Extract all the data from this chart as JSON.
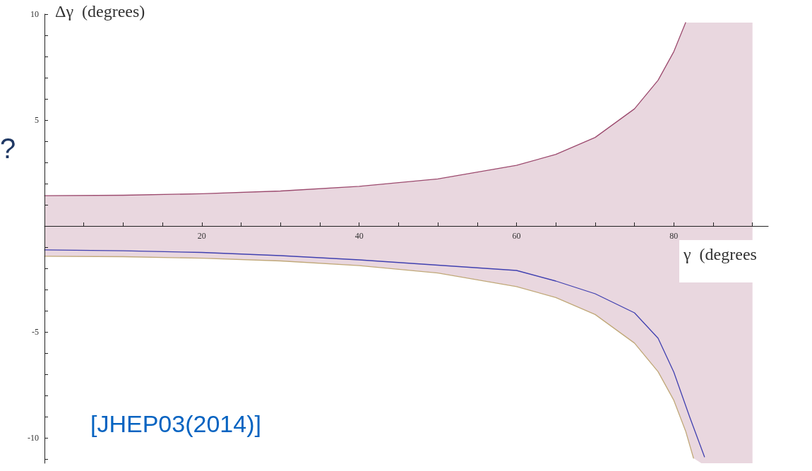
{
  "chart_data": {
    "type": "line",
    "ylabel": "Δγ  (degrees)",
    "xlabel": "γ  (degrees",
    "annotations": [
      "?",
      "[JHEP03(2014)]"
    ],
    "xlim": [
      0,
      92
    ],
    "ylim": [
      -11.2,
      10
    ],
    "xticks": [
      {
        "value": 5,
        "label": null
      },
      {
        "value": 10,
        "label": null
      },
      {
        "value": 15,
        "label": null
      },
      20,
      {
        "value": 25,
        "label": null
      },
      {
        "value": 30,
        "label": null
      },
      {
        "value": 35,
        "label": null
      },
      40,
      {
        "value": 45,
        "label": null
      },
      {
        "value": 50,
        "label": null
      },
      {
        "value": 55,
        "label": null
      },
      60,
      {
        "value": 65,
        "label": null
      },
      {
        "value": 70,
        "label": null
      },
      {
        "value": 75,
        "label": null
      },
      80,
      {
        "value": 85,
        "label": null
      },
      {
        "value": 90,
        "label": null
      }
    ],
    "yticks": [
      {
        "value": -11,
        "label": null
      },
      -10,
      {
        "value": -9,
        "label": null
      },
      {
        "value": -8,
        "label": null
      },
      {
        "value": -7,
        "label": null
      },
      {
        "value": -6,
        "label": null
      },
      -5,
      {
        "value": -4,
        "label": null
      },
      {
        "value": -3,
        "label": null
      },
      {
        "value": -2,
        "label": null
      },
      {
        "value": -1,
        "label": null
      },
      {
        "value": 1,
        "label": null
      },
      {
        "value": 2,
        "label": null
      },
      {
        "value": 3,
        "label": null
      },
      {
        "value": 4,
        "label": null
      },
      5,
      {
        "value": 6,
        "label": null
      },
      {
        "value": 7,
        "label": null
      },
      {
        "value": 8,
        "label": null
      },
      {
        "value": 9,
        "label": null
      },
      10
    ],
    "grid": false,
    "marker": "none",
    "line_style": "solid",
    "series": [
      {
        "color": "#9c4a6e",
        "x": [
          0,
          10,
          20,
          30,
          40,
          50,
          60,
          65,
          70,
          75,
          78,
          80,
          81.5,
          82.5,
          83.5,
          85,
          90
        ],
        "values": [
          1.43,
          1.45,
          1.52,
          1.65,
          1.87,
          2.22,
          2.86,
          3.38,
          4.18,
          5.53,
          6.88,
          8.23,
          9.6,
          null,
          null,
          null,
          null
        ],
        "lower": [
          -1.43,
          -1.45,
          -1.52,
          -1.65,
          -1.87,
          -2.22,
          -2.86,
          -3.38,
          -4.18,
          -5.53,
          -6.88,
          -8.23,
          -9.68,
          -10.96,
          -11.2,
          -11.2,
          -11.2
        ],
        "upper": [
          1.43,
          1.45,
          1.52,
          1.65,
          1.87,
          2.22,
          2.86,
          3.38,
          4.18,
          5.53,
          6.88,
          8.23,
          9.6,
          9.6,
          9.6,
          9.6,
          9.6
        ]
      },
      {
        "color": "#4040b0",
        "x": [
          0,
          10,
          20,
          30,
          40,
          50,
          60,
          65,
          70,
          75,
          78,
          80,
          82,
          83.9
        ],
        "values": [
          -1.13,
          -1.17,
          -1.25,
          -1.4,
          -1.6,
          -1.85,
          -2.1,
          -2.6,
          -3.2,
          -4.1,
          -5.3,
          -6.9,
          -9.0,
          -10.9
        ]
      },
      {
        "color": "#c0a878",
        "x": [
          0,
          10,
          20,
          30,
          40,
          50,
          60,
          65,
          70,
          75,
          78,
          80,
          81.5,
          82.5
        ],
        "values": [
          -1.43,
          -1.45,
          -1.52,
          -1.65,
          -1.87,
          -2.22,
          -2.86,
          -3.38,
          -4.18,
          -5.53,
          -6.88,
          -8.23,
          -9.68,
          -10.96
        ]
      }
    ]
  }
}
